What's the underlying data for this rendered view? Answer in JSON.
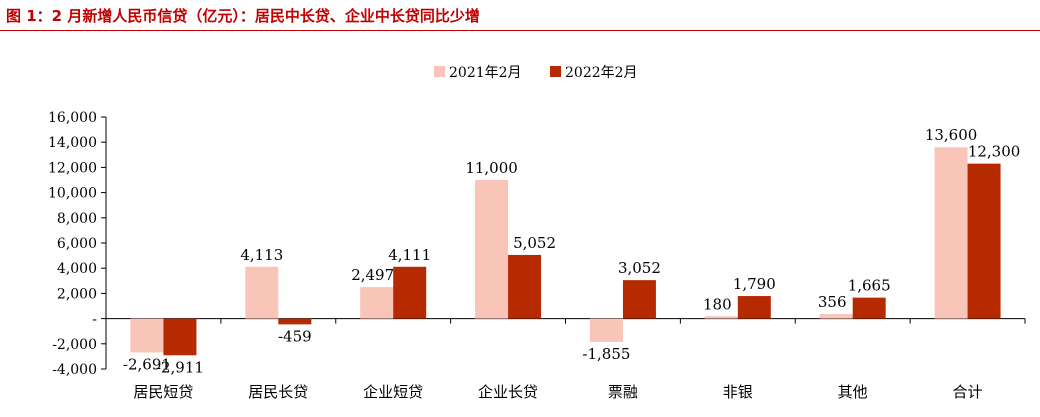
{
  "figure_title": "图 1：2 月新增人民币信贷（亿元）：居民中长贷、企业中长贷同比少增",
  "colors": {
    "title": "#c00000",
    "series_2021": "#f8c5b8",
    "series_2022": "#b52a00",
    "axis": "#000000"
  },
  "chart_data": {
    "type": "bar",
    "categories": [
      "居民短贷",
      "居民长贷",
      "企业短贷",
      "企业长贷",
      "票融",
      "非银",
      "其他",
      "合计"
    ],
    "series": [
      {
        "name": "2021年2月",
        "values": [
          -2691,
          4113,
          2497,
          11000,
          -1855,
          180,
          356,
          13600
        ],
        "labels": [
          "-2,691",
          "4,113",
          "2,497",
          "11,000",
          "-1,855",
          "180",
          "356",
          "13,600"
        ]
      },
      {
        "name": "2022年2月",
        "values": [
          -2911,
          -459,
          4111,
          5052,
          3052,
          1790,
          1665,
          12300
        ],
        "labels": [
          "-2,911",
          "-459",
          "4,111",
          "5,052",
          "3,052",
          "1,790",
          "1,665",
          "12,300"
        ]
      }
    ],
    "yticks": [
      16000,
      14000,
      12000,
      10000,
      8000,
      6000,
      4000,
      2000,
      0,
      -2000,
      -4000
    ],
    "ytick_labels": [
      "16,000",
      "14,000",
      "12,000",
      "10,000",
      "8,000",
      "6,000",
      "4,000",
      "2,000",
      "-",
      "-2,000",
      "-4,000"
    ],
    "ylim": [
      -4000,
      16000
    ],
    "legend_position": "top-center",
    "grid": false,
    "xlabel": "",
    "ylabel": ""
  }
}
